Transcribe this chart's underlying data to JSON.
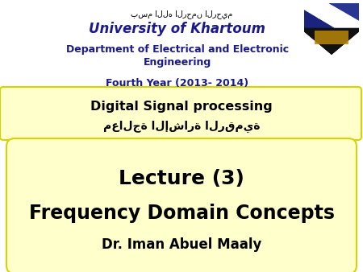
{
  "bg_color": "#ffffff",
  "arabic_top": "بسم الله الرحمن الرحيم",
  "university": "University of Khartoum",
  "department_line1": "Department of Electrical and Electronic",
  "department_line2": "Engineering",
  "year": "Fourth Year (2013- 2014)",
  "box1_bg": "#ffffcc",
  "box1_border": "#d4d400",
  "box1_line1": "Digital Signal processing",
  "box1_line2": "معالجة الإشارة الرقمية",
  "box2_bg": "#ffffcc",
  "box2_border": "#d4d400",
  "box2_line1": "Lecture (3)",
  "box2_line2": "Frequency Domain Concepts",
  "box2_line3": "Dr. Iman Abuel Maaly",
  "text_color_main": "#1a1a8c",
  "text_black": "#000000",
  "logo_blue_dark": "#1a237e",
  "logo_blue_mid": "#283593",
  "logo_white": "#ffffff",
  "logo_black": "#000000",
  "logo_gold": "#b8860b"
}
